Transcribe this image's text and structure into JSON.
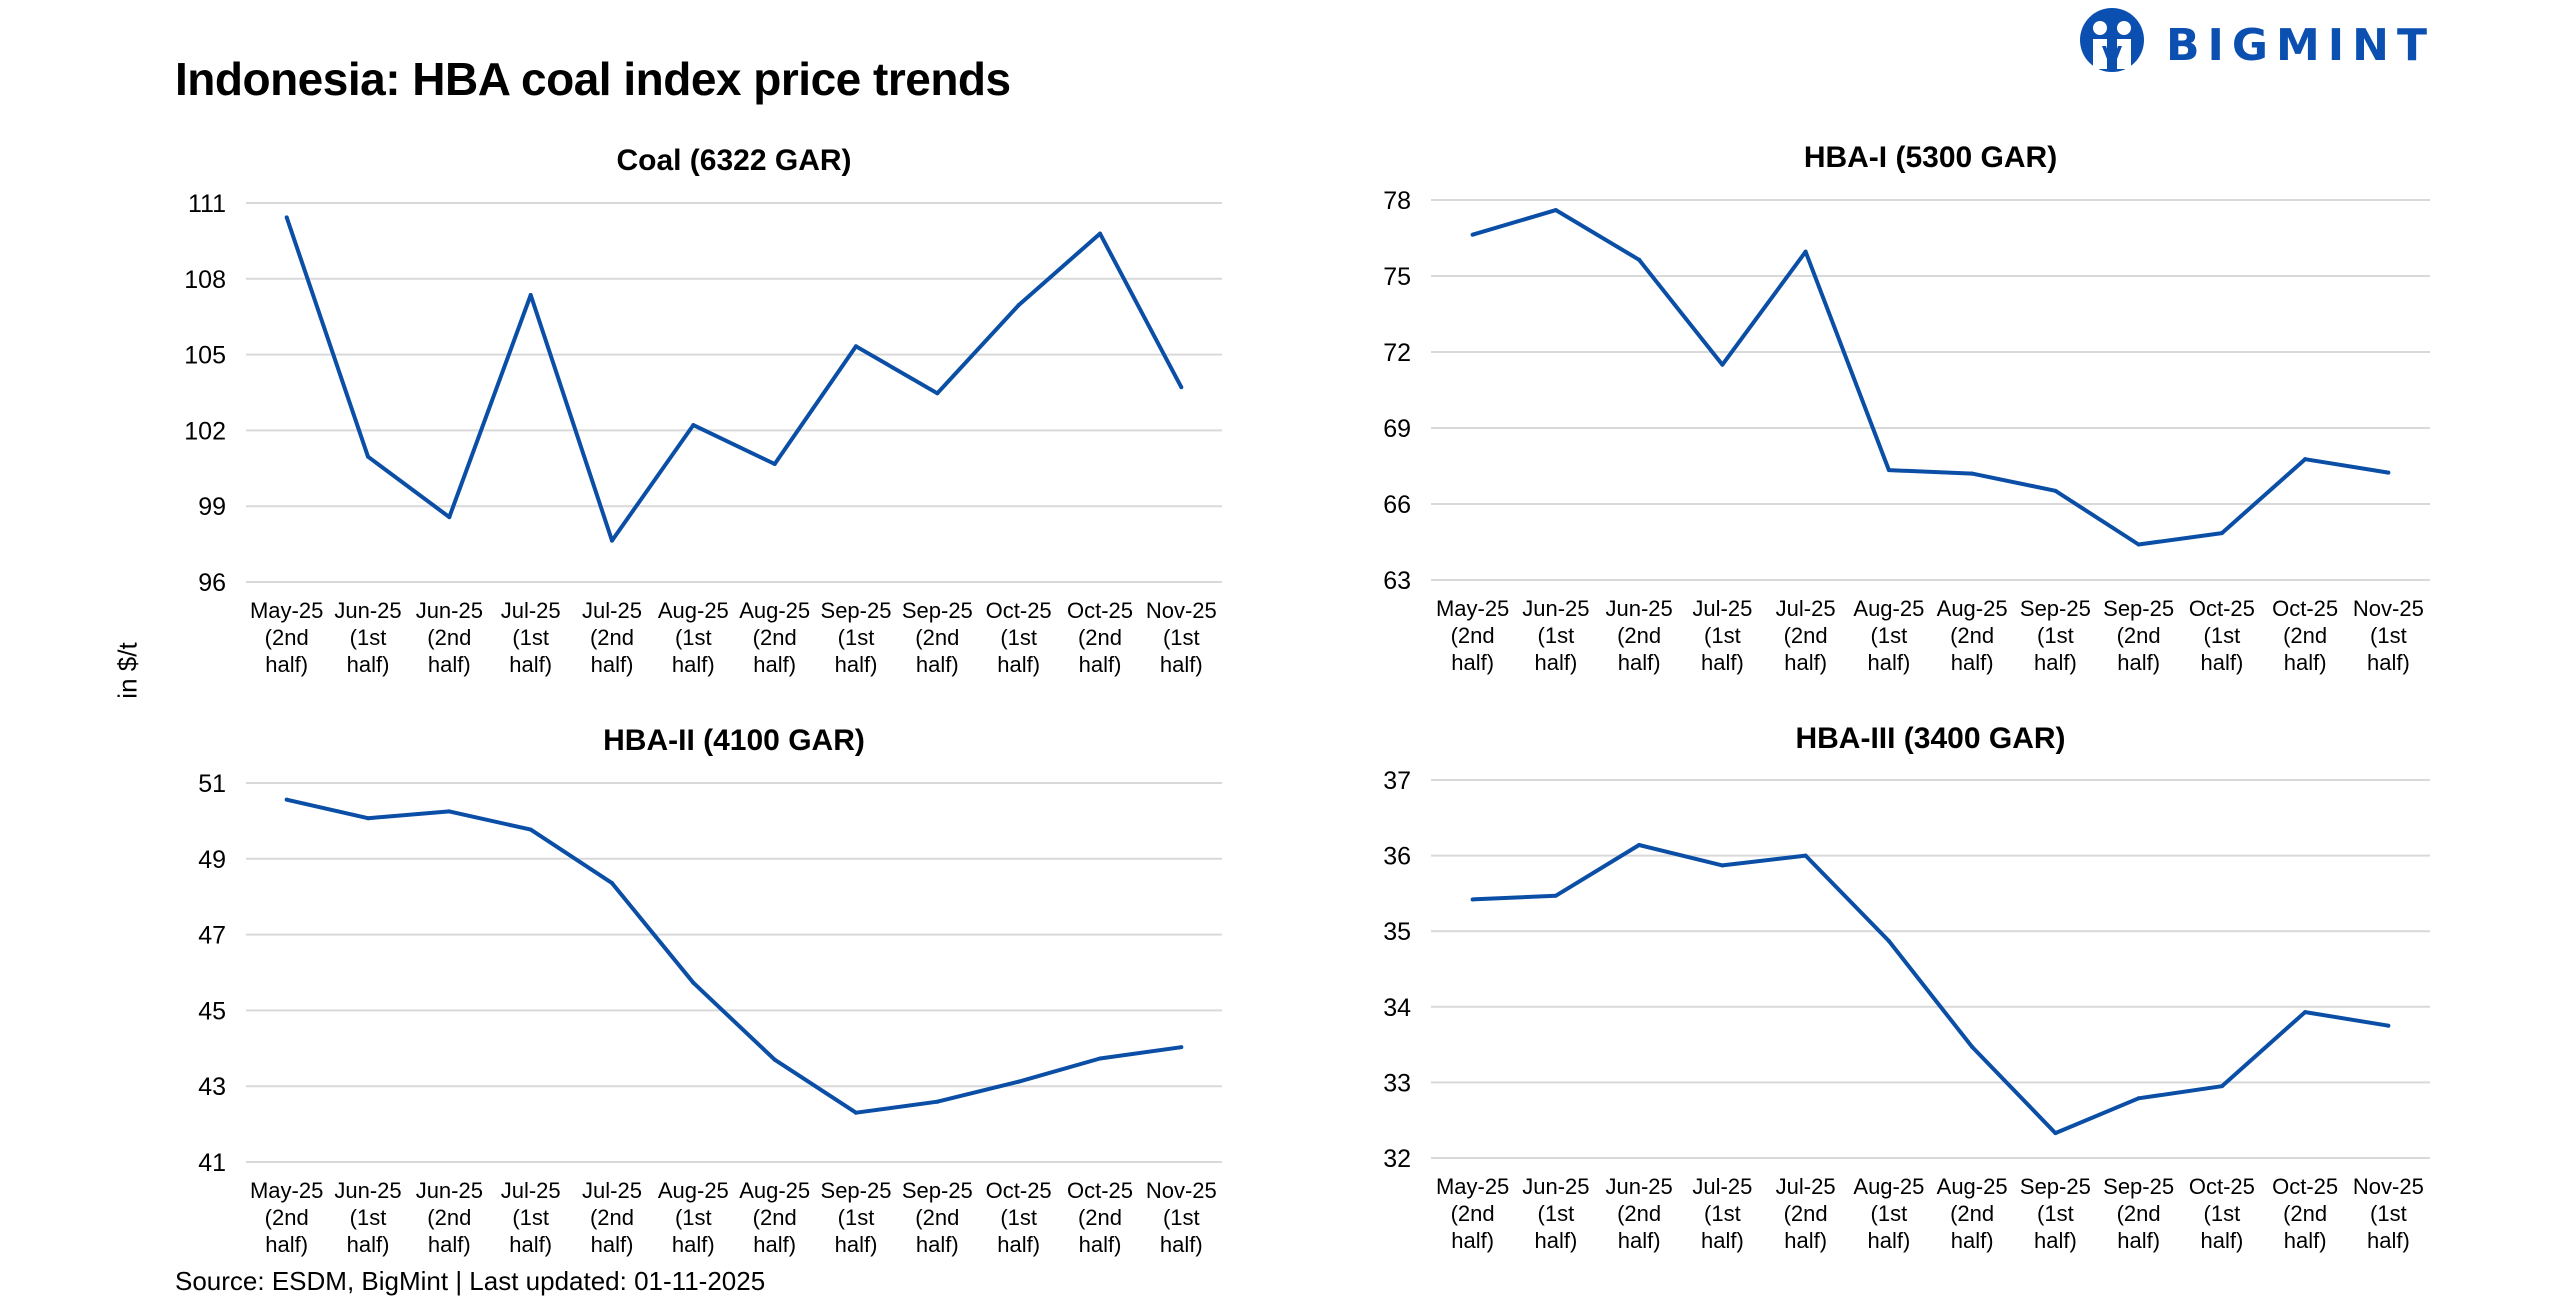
{
  "header": {
    "title": "Indonesia: HBA coal index price trends",
    "logo_text": "BIGMINT",
    "y_axis_label": "in $/t"
  },
  "footer": {
    "source": "Source: ESDM, BigMint | Last updated: 01-11-2025"
  },
  "colors": {
    "line": "#0a4ea6",
    "grid": "#d9d9d9",
    "brand": "#0b50b0"
  },
  "chart_data": [
    {
      "type": "line",
      "title": "Coal (6322 GAR)",
      "categories": [
        "May-25 (2nd half)",
        "Jun-25 (1st half)",
        "Jun-25 (2nd half)",
        "Jul-25 (1st half)",
        "Jul-25 (2nd half)",
        "Aug-25 (1st half)",
        "Aug-25 (2nd half)",
        "Sep-25 (1st half)",
        "Sep-25 (2nd half)",
        "Oct-25 (1st half)",
        "Oct-25 (2nd half)",
        "Nov-25 (1st half)"
      ],
      "values": [
        110.43,
        100.96,
        98.57,
        107.36,
        97.64,
        102.21,
        100.67,
        105.33,
        103.47,
        106.96,
        109.79,
        103.71
      ],
      "ylim": [
        96,
        111
      ],
      "yticks": [
        96,
        99,
        102,
        105,
        108,
        111
      ],
      "grid": true
    },
    {
      "type": "line",
      "title": "HBA-I (5300 GAR)",
      "categories": [
        "May-25 (2nd half)",
        "Jun-25 (1st half)",
        "Jun-25 (2nd half)",
        "Jul-25 (1st half)",
        "Jul-25 (2nd half)",
        "Aug-25 (1st half)",
        "Aug-25 (2nd half)",
        "Sep-25 (1st half)",
        "Sep-25 (2nd half)",
        "Oct-25 (1st half)",
        "Oct-25 (2nd half)",
        "Nov-25 (1st half)"
      ],
      "values": [
        76.63,
        77.6,
        75.64,
        71.5,
        75.96,
        67.34,
        67.2,
        66.52,
        64.4,
        64.85,
        67.77,
        67.24
      ],
      "ylim": [
        63,
        78
      ],
      "yticks": [
        63,
        66,
        69,
        72,
        75,
        78
      ],
      "grid": true
    },
    {
      "type": "line",
      "title": "HBA-II (4100 GAR)",
      "categories": [
        "May-25 (2nd half)",
        "Jun-25 (1st half)",
        "Jun-25 (2nd half)",
        "Jul-25 (1st half)",
        "Jul-25 (2nd half)",
        "Aug-25 (1st half)",
        "Aug-25 (2nd half)",
        "Sep-25 (1st half)",
        "Sep-25 (2nd half)",
        "Oct-25 (1st half)",
        "Oct-25 (2nd half)",
        "Nov-25 (1st half)"
      ],
      "values": [
        50.56,
        50.07,
        50.25,
        49.77,
        48.36,
        45.73,
        43.7,
        42.3,
        42.59,
        43.12,
        43.73,
        44.03
      ],
      "ylim": [
        41,
        51
      ],
      "yticks": [
        41,
        43,
        45,
        47,
        49,
        51
      ],
      "grid": true
    },
    {
      "type": "line",
      "title": "HBA-III (3400 GAR)",
      "categories": [
        "May-25 (2nd half)",
        "Jun-25 (1st half)",
        "Jun-25 (2nd half)",
        "Jul-25 (1st half)",
        "Jul-25 (2nd half)",
        "Aug-25 (1st half)",
        "Aug-25 (2nd half)",
        "Sep-25 (1st half)",
        "Sep-25 (2nd half)",
        "Oct-25 (1st half)",
        "Oct-25 (2nd half)",
        "Nov-25 (1st half)"
      ],
      "values": [
        35.42,
        35.47,
        36.14,
        35.87,
        36.0,
        34.87,
        33.47,
        32.33,
        32.79,
        32.95,
        33.93,
        33.75
      ],
      "ylim": [
        32,
        37
      ],
      "yticks": [
        32,
        33,
        34,
        35,
        36,
        37
      ],
      "grid": true
    }
  ]
}
